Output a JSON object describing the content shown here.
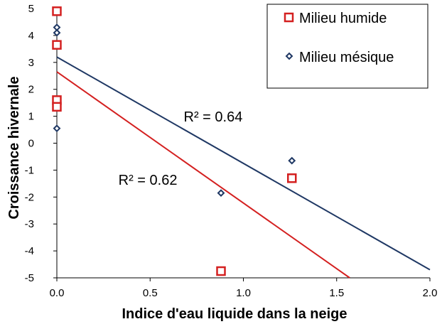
{
  "chart_data": {
    "type": "scatter",
    "title": "",
    "xlabel": "Indice d'eau liquide dans la neige",
    "ylabel": "Croissance hivernale",
    "xlim": [
      0,
      2.0
    ],
    "ylim": [
      -5,
      5
    ],
    "x_ticks": [
      "0.0",
      "0.5",
      "1.0",
      "1.5",
      "2.0"
    ],
    "y_ticks": [
      "5",
      "4",
      "3",
      "2",
      "1",
      "0",
      "-1",
      "-2",
      "-3",
      "-4",
      "-5"
    ],
    "grid": false,
    "legend_position": "top-right",
    "series": [
      {
        "name": "Milieu humide",
        "marker": "square",
        "color": "#d42020",
        "points": [
          {
            "x": 0.0,
            "y": 4.9
          },
          {
            "x": 0.0,
            "y": 3.65
          },
          {
            "x": 0.0,
            "y": 1.6
          },
          {
            "x": 0.0,
            "y": 1.35
          },
          {
            "x": 0.88,
            "y": -4.75
          },
          {
            "x": 1.26,
            "y": -1.3
          }
        ],
        "trendline": {
          "x": [
            0.0,
            1.57
          ],
          "y": [
            2.65,
            -5.0
          ]
        }
      },
      {
        "name": "Milieu mésique",
        "marker": "diamond",
        "color": "#1f3864",
        "points": [
          {
            "x": 0.0,
            "y": 4.3
          },
          {
            "x": 0.0,
            "y": 4.1
          },
          {
            "x": 0.0,
            "y": 0.55
          },
          {
            "x": 0.88,
            "y": -1.85
          },
          {
            "x": 1.26,
            "y": -0.65
          }
        ],
        "trendline": {
          "x": [
            0.0,
            2.0
          ],
          "y": [
            3.2,
            -4.7
          ]
        }
      }
    ],
    "annotations": [
      {
        "text": "R² = 0.64",
        "x": 0.68,
        "y": 0.8
      },
      {
        "text": "R² = 0.62",
        "x": 0.33,
        "y": -1.55
      }
    ]
  }
}
